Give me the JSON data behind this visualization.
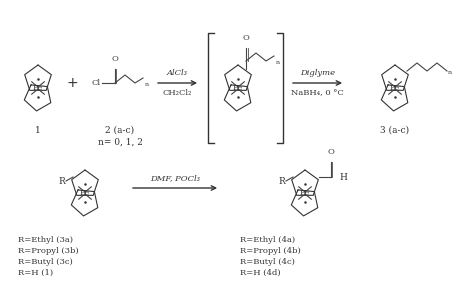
{
  "background_color": "#ffffff",
  "fig_width": 4.74,
  "fig_height": 2.98,
  "dpi": 100,
  "bottom_labels_left": [
    "R=Ethyl (3a)",
    "R=Propyl (3b)",
    "R=Butyl (3c)",
    "R=H (1)"
  ],
  "bottom_labels_right": [
    "R=Ethyl (4a)",
    "R=Propyl (4b)",
    "R=Butyl (4c)",
    "R=H (4d)"
  ],
  "label1": "1",
  "label2": "2 (a-c)",
  "label2b": "n= 0, 1, 2",
  "label3": "3 (a-c)",
  "arrow1_top": "AlCl₃",
  "arrow1_bot": "CH₂Cl₂",
  "arrow2_top": "Diglyme",
  "arrow2_bot": "NaBH₄, 0 °C",
  "arrow3_top": "DMF, POCl₃",
  "text_color": "#333333",
  "line_color": "#444444"
}
